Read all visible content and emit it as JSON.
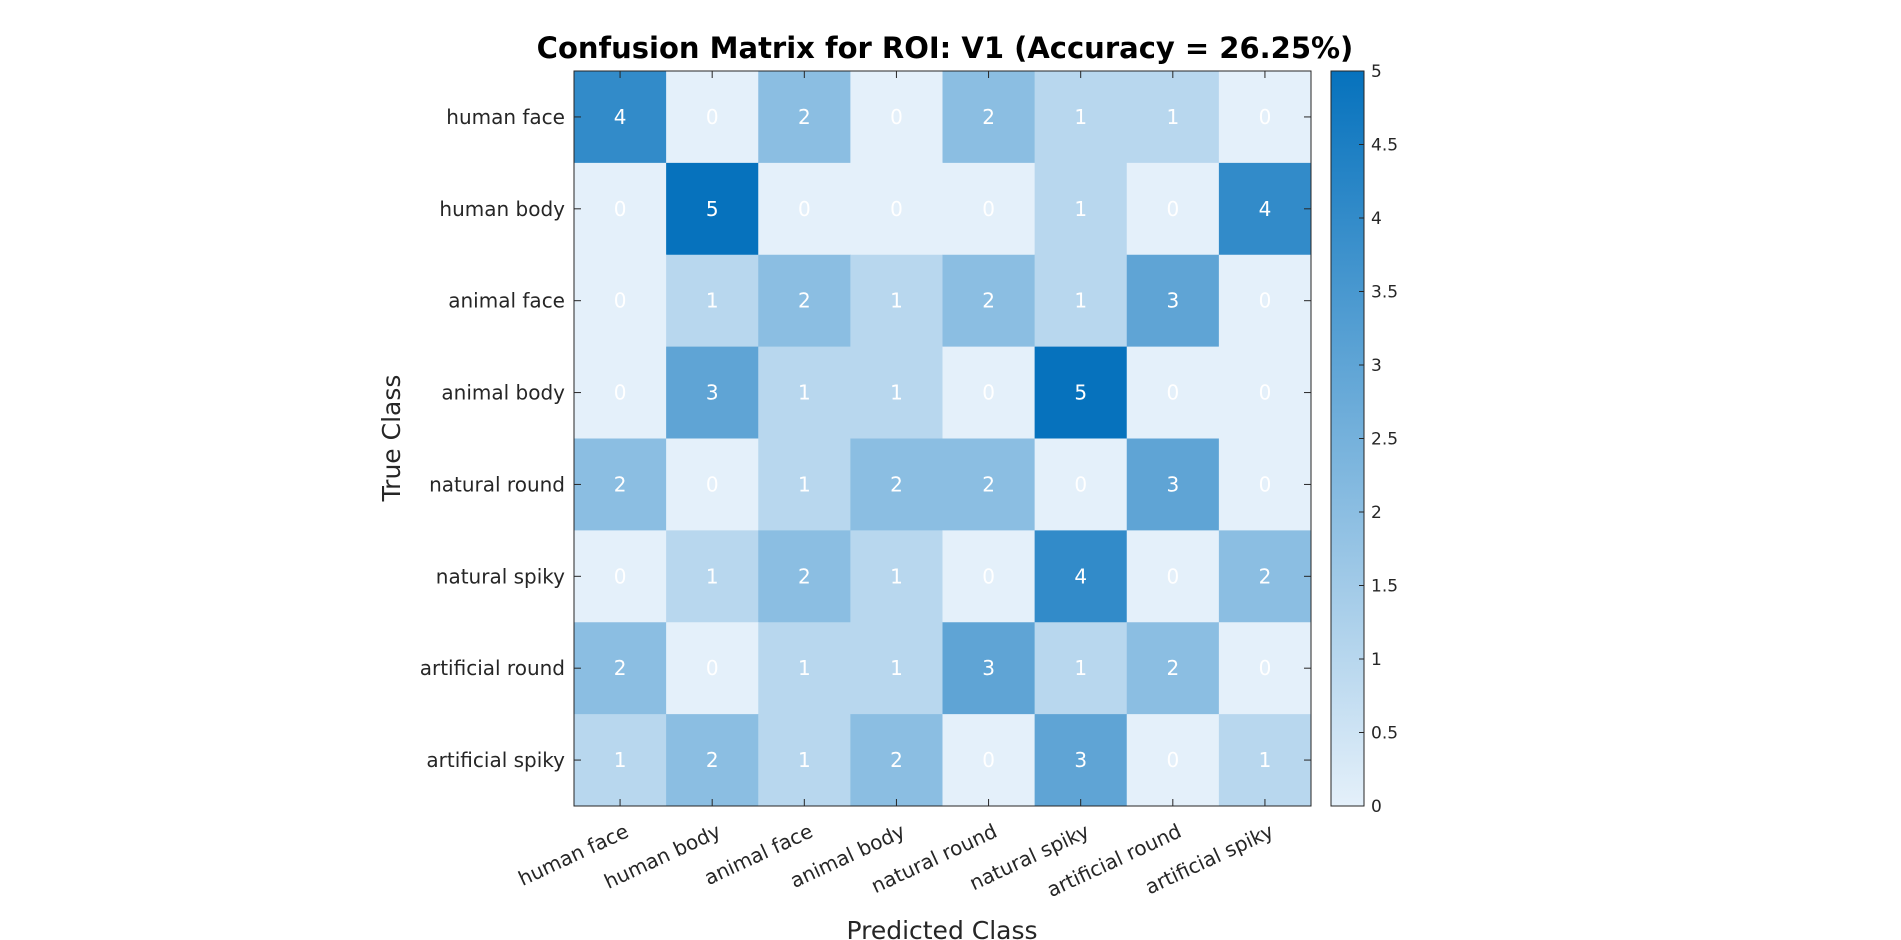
{
  "chart_data": {
    "type": "heatmap",
    "title": "Confusion Matrix for ROI: V1 (Accuracy = 26.25%)",
    "xlabel": "Predicted Class",
    "ylabel": "True Class",
    "x_categories": [
      "human face",
      "human body",
      "animal face",
      "animal body",
      "natural round",
      "natural spiky",
      "artificial round",
      "artificial spiky"
    ],
    "y_categories": [
      "human face",
      "human body",
      "animal face",
      "animal body",
      "natural round",
      "natural spiky",
      "artificial round",
      "artificial spiky"
    ],
    "values": [
      [
        4,
        0,
        2,
        0,
        2,
        1,
        1,
        0
      ],
      [
        0,
        5,
        0,
        0,
        0,
        1,
        0,
        4
      ],
      [
        0,
        1,
        2,
        1,
        2,
        1,
        3,
        0
      ],
      [
        0,
        3,
        1,
        1,
        0,
        5,
        0,
        0
      ],
      [
        2,
        0,
        1,
        2,
        2,
        0,
        3,
        0
      ],
      [
        0,
        1,
        2,
        1,
        0,
        4,
        0,
        2
      ],
      [
        2,
        0,
        1,
        1,
        3,
        1,
        2,
        0
      ],
      [
        1,
        2,
        1,
        2,
        0,
        3,
        0,
        1
      ]
    ],
    "colorbar": {
      "range": [
        0,
        5
      ],
      "ticks": [
        0,
        0.5,
        1,
        1.5,
        2,
        2.5,
        3,
        3.5,
        4,
        4.5,
        5
      ],
      "tick_labels": [
        "0",
        "0.5",
        "1",
        "1.5",
        "2",
        "2.5",
        "3",
        "3.5",
        "4",
        "4.5",
        "5"
      ],
      "color_low": "#e4f0fa",
      "color_high": "#0672bd"
    }
  }
}
